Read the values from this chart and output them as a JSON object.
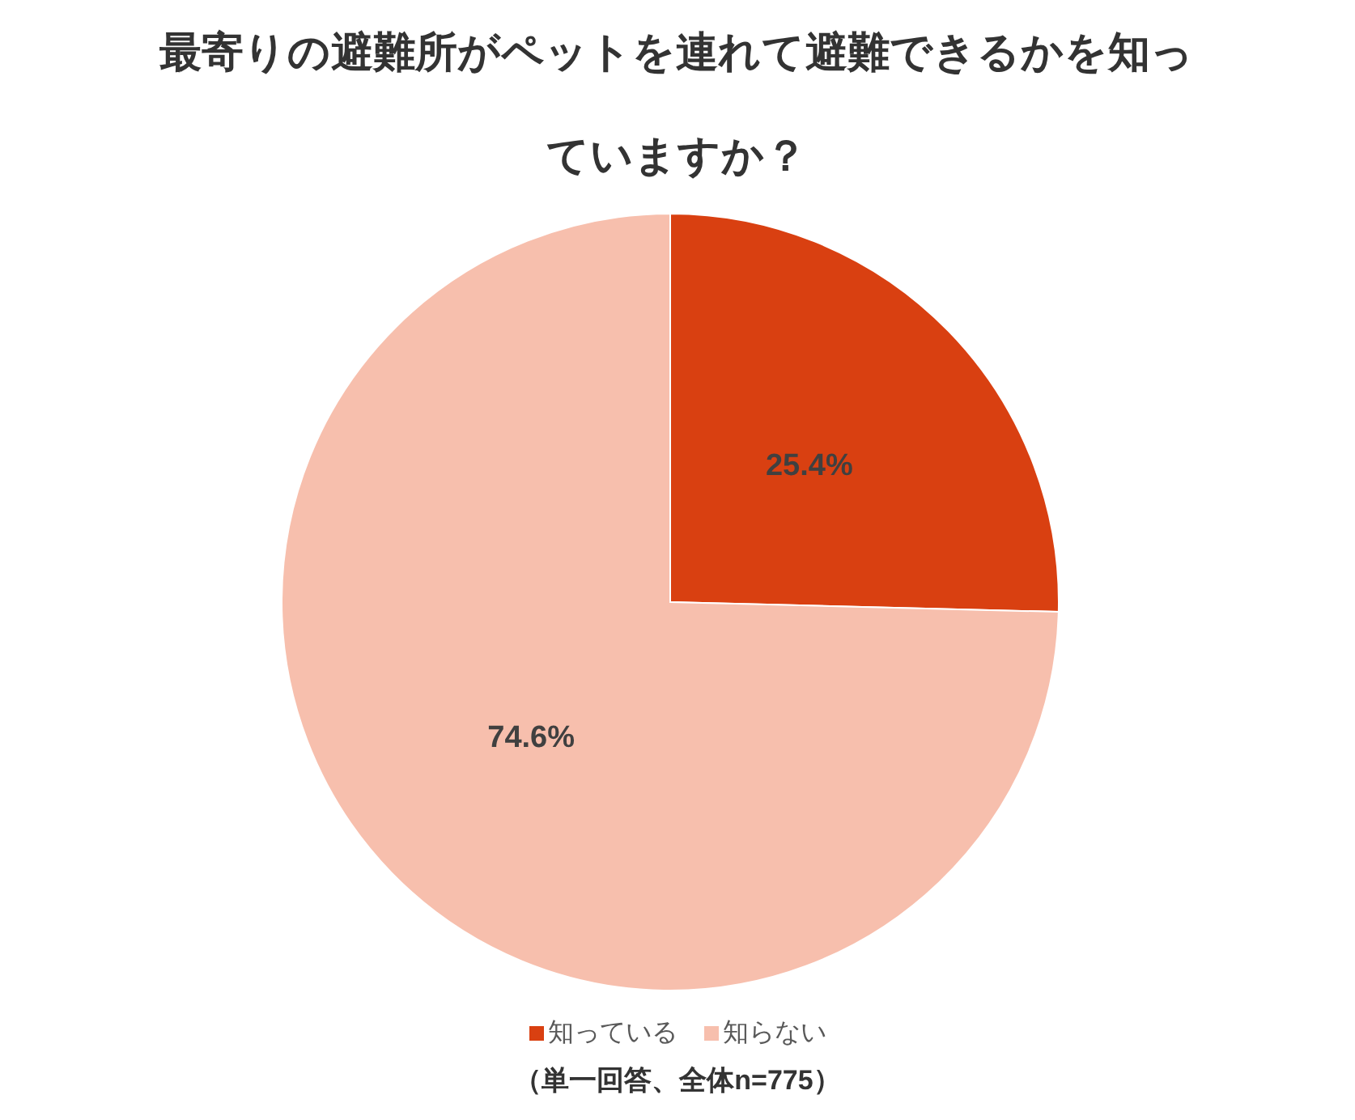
{
  "chart_data": {
    "type": "pie",
    "title": "最寄りの避難所がペットを連れて避難できるかを知っていますか？",
    "categories": [
      "知っている",
      "知らない"
    ],
    "values": [
      25.4,
      74.6
    ],
    "colors": [
      "#d94011",
      "#f7bfad"
    ],
    "value_labels": [
      "25.4%",
      "74.6%"
    ],
    "legend": "bottom",
    "annotations": [
      "（単一回答、全体n=775）"
    ]
  }
}
